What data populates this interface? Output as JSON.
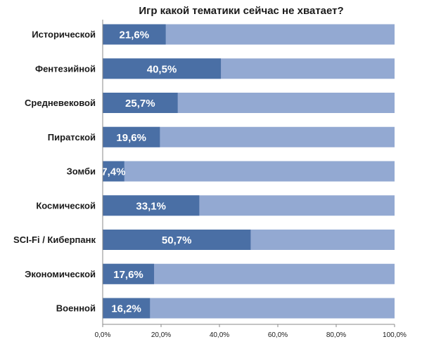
{
  "chart_data": {
    "type": "bar",
    "orientation": "horizontal",
    "stacked_to_total": true,
    "title": "Игр какой тематики сейчас не хватает?",
    "xlabel": "",
    "ylabel": "",
    "categories": [
      "Исторической",
      "Фентезийной",
      "Средневековой",
      "Пиратской",
      "Зомби",
      "Космической",
      "SCI-Fi / Киберпанк",
      "Экономической",
      "Военной"
    ],
    "values": [
      21.6,
      40.5,
      25.7,
      19.6,
      7.4,
      33.1,
      50.7,
      17.6,
      16.2
    ],
    "value_labels": [
      "21,6%",
      "40,5%",
      "25,7%",
      "19,6%",
      "7,4%",
      "33,1%",
      "50,7%",
      "17,6%",
      "16,2%"
    ],
    "total": 100,
    "xlim": [
      0,
      100
    ],
    "x_ticks": [
      0,
      20,
      40,
      60,
      80,
      100
    ],
    "x_tick_labels": [
      "0,0%",
      "20,0%",
      "40,0%",
      "60,0%",
      "80,0%",
      "100,0%"
    ],
    "grid": false,
    "legend": "none",
    "colors": {
      "value_bar": "#4a6fa5",
      "remainder_bar": "#93a9d2",
      "value_text": "#ffffff",
      "text": "#1a1a1a",
      "axis": "#888888"
    }
  }
}
